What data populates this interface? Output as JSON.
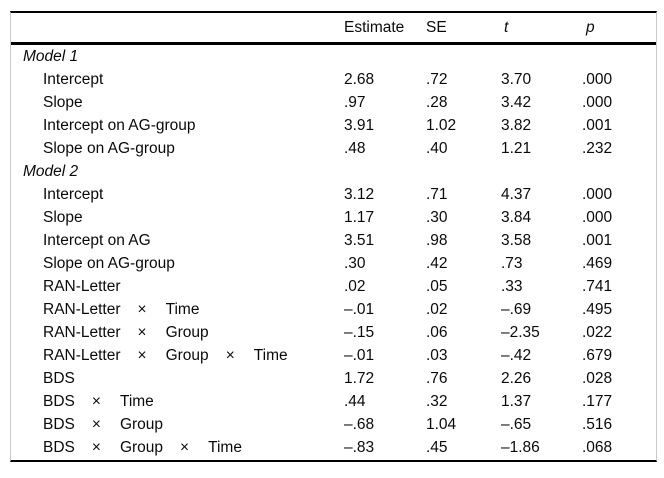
{
  "page": {
    "background": "#ffffff",
    "rule_color": "#000000",
    "edge_line_color": "#c9c9c9",
    "text_color": "#0a0a0a"
  },
  "table": {
    "header": {
      "label": "",
      "estimate": "Estimate",
      "se": "SE",
      "t": "t",
      "p": "p"
    },
    "multiply_symbol": "×",
    "rows": [
      {
        "type": "section",
        "parts": [
          "Model 1"
        ],
        "estimate": "",
        "se": "",
        "t": "",
        "p": ""
      },
      {
        "type": "item",
        "parts": [
          "Intercept"
        ],
        "estimate": "2.68",
        "se": ".72",
        "t": "3.70",
        "p": ".000"
      },
      {
        "type": "item",
        "parts": [
          "Slope"
        ],
        "estimate": ".97",
        "se": ".28",
        "t": "3.42",
        "p": ".000"
      },
      {
        "type": "item",
        "parts": [
          "Intercept on AG-group"
        ],
        "estimate": "3.91",
        "se": "1.02",
        "t": "3.82",
        "p": ".001"
      },
      {
        "type": "item",
        "parts": [
          "Slope on AG-group"
        ],
        "estimate": ".48",
        "se": ".40",
        "t": "1.21",
        "p": ".232"
      },
      {
        "type": "section",
        "parts": [
          "Model 2"
        ],
        "estimate": "",
        "se": "",
        "t": "",
        "p": ""
      },
      {
        "type": "item",
        "parts": [
          "Intercept"
        ],
        "estimate": "3.12",
        "se": ".71",
        "t": "4.37",
        "p": ".000"
      },
      {
        "type": "item",
        "parts": [
          "Slope"
        ],
        "estimate": "1.17",
        "se": ".30",
        "t": "3.84",
        "p": ".000"
      },
      {
        "type": "item",
        "parts": [
          "Intercept on AG"
        ],
        "estimate": "3.51",
        "se": ".98",
        "t": "3.58",
        "p": ".001"
      },
      {
        "type": "item",
        "parts": [
          "Slope on AG-group"
        ],
        "estimate": ".30",
        "se": ".42",
        "t": ".73",
        "p": ".469"
      },
      {
        "type": "item",
        "parts": [
          "RAN-Letter"
        ],
        "estimate": ".02",
        "se": ".05",
        "t": ".33",
        "p": ".741"
      },
      {
        "type": "item",
        "parts": [
          "RAN-Letter",
          "×",
          "Time"
        ],
        "estimate": "–.01",
        "se": ".02",
        "t": "–.69",
        "p": ".495"
      },
      {
        "type": "item",
        "parts": [
          "RAN-Letter",
          "×",
          "Group"
        ],
        "estimate": "–.15",
        "se": ".06",
        "t": "–2.35",
        "p": ".022"
      },
      {
        "type": "item",
        "parts": [
          "RAN-Letter",
          "×",
          "Group",
          "×",
          "Time"
        ],
        "estimate": "–.01",
        "se": ".03",
        "t": "–.42",
        "p": ".679"
      },
      {
        "type": "item",
        "parts": [
          "BDS"
        ],
        "estimate": "1.72",
        "se": ".76",
        "t": "2.26",
        "p": ".028"
      },
      {
        "type": "item",
        "parts": [
          "BDS",
          "×",
          "Time"
        ],
        "estimate": ".44",
        "se": ".32",
        "t": "1.37",
        "p": ".177"
      },
      {
        "type": "item",
        "parts": [
          "BDS",
          "×",
          "Group"
        ],
        "estimate": "–.68",
        "se": "1.04",
        "t": "–.65",
        "p": ".516"
      },
      {
        "type": "item",
        "parts": [
          "BDS",
          "×",
          "Group",
          "×",
          "Time"
        ],
        "estimate": "–.83",
        "se": ".45",
        "t": "–1.86",
        "p": ".068"
      }
    ]
  }
}
